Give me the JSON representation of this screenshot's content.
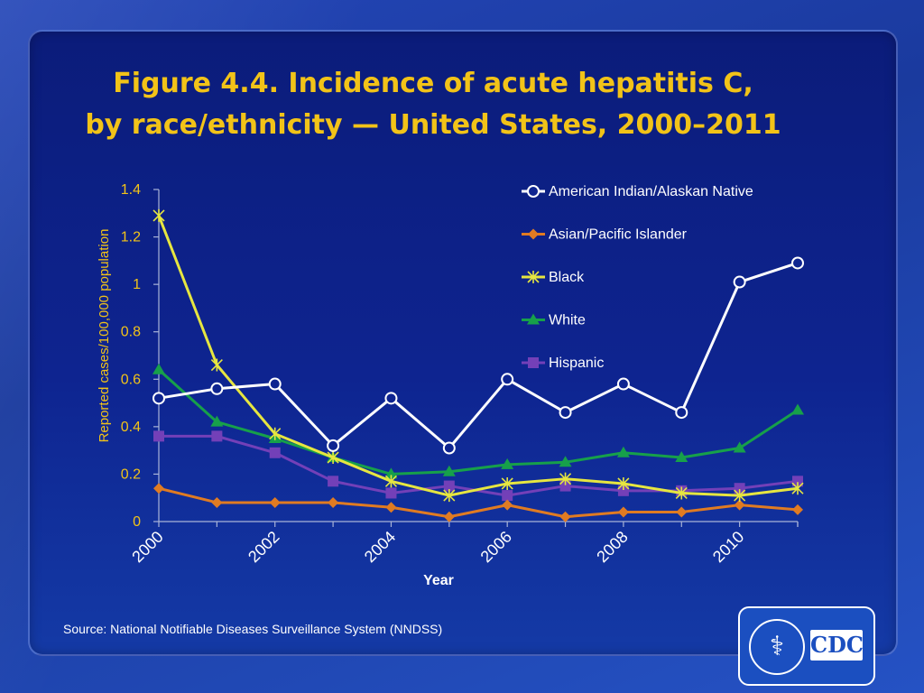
{
  "title_line1": "Figure 4.4. Incidence of acute hepatitis C,",
  "title_line2": "by race/ethnicity — United States, 2000–2011",
  "source": "Source: National Notifiable Diseases Surveillance System (NNDSS)",
  "logo": {
    "text": "CDC",
    "seal_glyph": "⚕"
  },
  "colors": {
    "title": "#f2c318",
    "axis_label": "#f2c318",
    "american_indian": "#ffffff",
    "asian": "#e07b22",
    "black": "#e6e640",
    "white": "#17a04a",
    "hispanic": "#7340b8"
  },
  "chart_data": {
    "type": "line",
    "title": "Figure 4.4. Incidence of acute hepatitis C, by race/ethnicity — United States, 2000–2011",
    "xlabel": "Year",
    "ylabel": "Reported cases/100,000 population",
    "x": [
      2000,
      2001,
      2002,
      2003,
      2004,
      2005,
      2006,
      2007,
      2008,
      2009,
      2010,
      2011
    ],
    "x_tick_labels": [
      "2000",
      "2002",
      "2004",
      "2006",
      "2008",
      "2010"
    ],
    "y_tick_labels": [
      "0",
      "0.2",
      "0.4",
      "0.6",
      "0.8",
      "1",
      "1.2",
      "1.4"
    ],
    "ylim": [
      0,
      1.4
    ],
    "grid": false,
    "legend_position": "top-right",
    "series": [
      {
        "name": "American Indian/Alaskan Native",
        "marker": "circle",
        "values": [
          0.52,
          0.56,
          0.58,
          0.32,
          0.52,
          0.31,
          0.6,
          0.46,
          0.58,
          0.46,
          1.01,
          1.09
        ]
      },
      {
        "name": "Asian/Pacific Islander",
        "marker": "diamond",
        "values": [
          0.14,
          0.08,
          0.08,
          0.08,
          0.06,
          0.02,
          0.07,
          0.02,
          0.04,
          0.04,
          0.07,
          0.05
        ]
      },
      {
        "name": "Black",
        "marker": "star",
        "values": [
          1.29,
          0.66,
          0.37,
          0.27,
          0.17,
          0.11,
          0.16,
          0.18,
          0.16,
          0.12,
          0.11,
          0.14
        ]
      },
      {
        "name": "White",
        "marker": "triangle",
        "values": [
          0.64,
          0.42,
          0.35,
          0.27,
          0.2,
          0.21,
          0.24,
          0.25,
          0.29,
          0.27,
          0.31,
          0.47
        ]
      },
      {
        "name": "Hispanic",
        "marker": "square",
        "values": [
          0.36,
          0.36,
          0.29,
          0.17,
          0.12,
          0.15,
          0.11,
          0.15,
          0.13,
          0.13,
          0.14,
          0.17
        ]
      }
    ]
  }
}
